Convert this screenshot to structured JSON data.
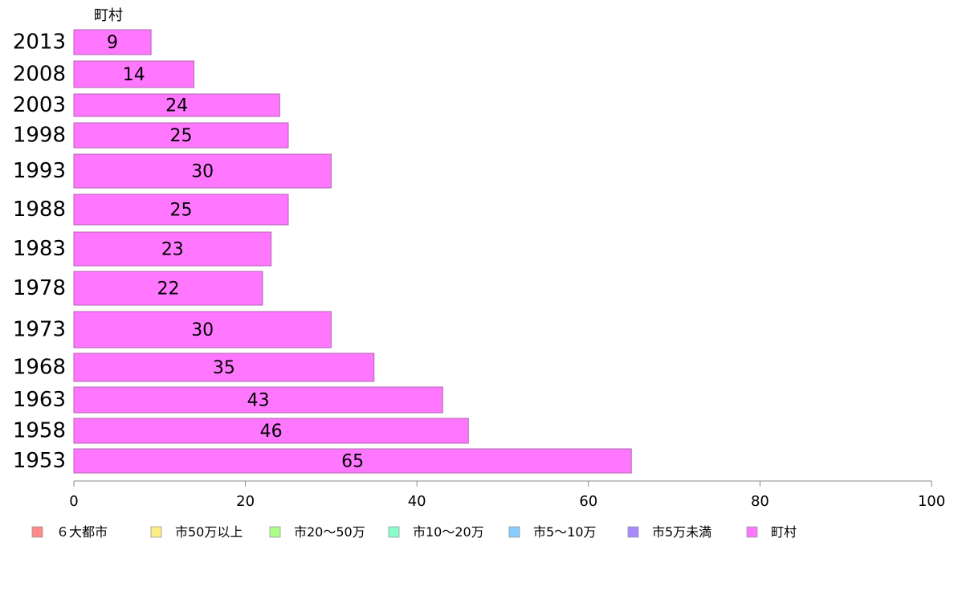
{
  "chart_data": {
    "type": "bar",
    "orientation": "horizontal",
    "series_label": "町村",
    "categories": [
      "2013",
      "2008",
      "2003",
      "1998",
      "1993",
      "1988",
      "1983",
      "1978",
      "1973",
      "1968",
      "1963",
      "1958",
      "1953"
    ],
    "values": [
      9,
      14,
      24,
      25,
      30,
      25,
      23,
      22,
      30,
      35,
      43,
      46,
      65
    ],
    "x_axis": {
      "range": [
        0,
        100
      ],
      "ticks": [
        0,
        20,
        40,
        60,
        80,
        100
      ]
    },
    "bar_color": "#ff77ff",
    "bar_stroke": "#b066b0",
    "legend": [
      {
        "label": "６大都市",
        "color": "#ff8888"
      },
      {
        "label": "市50万以上",
        "color": "#ffee88"
      },
      {
        "label": "市20～50万",
        "color": "#aaff88"
      },
      {
        "label": "市10～20万",
        "color": "#88ffcc"
      },
      {
        "label": "市5～10万",
        "color": "#88ccff"
      },
      {
        "label": "市5万未満",
        "color": "#aa88ff"
      },
      {
        "label": "町村",
        "color": "#ff77ff"
      }
    ],
    "legend_position": "bottom"
  }
}
